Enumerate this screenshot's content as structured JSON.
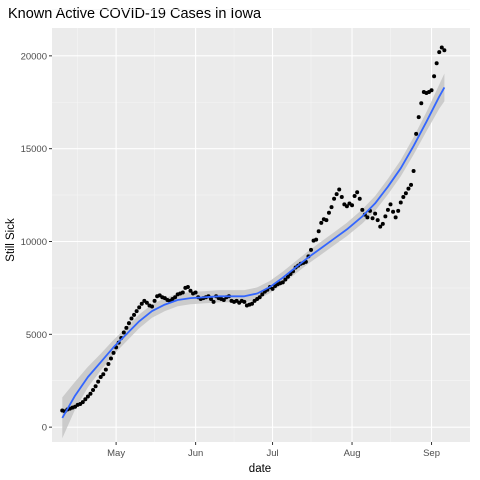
{
  "chart_data": {
    "type": "scatter",
    "title": "Known Active COVID-19 Cases in Iowa",
    "xlabel": "date",
    "ylabel": "Still Sick",
    "x_ticks": [
      "May",
      "Jun",
      "Jul",
      "Aug",
      "Sep"
    ],
    "y_ticks": [
      "0",
      "5000",
      "10000",
      "15000",
      "20000"
    ],
    "y_tick_values": [
      0,
      5000,
      10000,
      15000,
      20000
    ],
    "xlim": [
      "2020-04-06",
      "2020-09-16"
    ],
    "ylim": [
      -800,
      21500
    ],
    "grid": true,
    "legend": "none",
    "colors": {
      "panel": "#ebebeb",
      "grid_major": "#ffffff",
      "grid_minor": "#f5f5f5",
      "points": "#000000",
      "smooth_line": "#3366ff",
      "confidence_band": "#c6c6c6"
    },
    "series": [
      {
        "kind": "points",
        "points": [
          [
            "2020-04-10",
            900
          ],
          [
            "2020-04-11",
            850
          ],
          [
            "2020-04-12",
            950
          ],
          [
            "2020-04-13",
            1000
          ],
          [
            "2020-04-14",
            1050
          ],
          [
            "2020-04-15",
            1100
          ],
          [
            "2020-04-16",
            1200
          ],
          [
            "2020-04-17",
            1250
          ],
          [
            "2020-04-18",
            1350
          ],
          [
            "2020-04-19",
            1500
          ],
          [
            "2020-04-20",
            1650
          ],
          [
            "2020-04-21",
            1800
          ],
          [
            "2020-04-22",
            2000
          ],
          [
            "2020-04-23",
            2200
          ],
          [
            "2020-04-24",
            2450
          ],
          [
            "2020-04-25",
            2700
          ],
          [
            "2020-04-26",
            2850
          ],
          [
            "2020-04-27",
            3100
          ],
          [
            "2020-04-28",
            3400
          ],
          [
            "2020-04-29",
            3700
          ],
          [
            "2020-04-30",
            4000
          ],
          [
            "2020-05-01",
            4300
          ],
          [
            "2020-05-02",
            4550
          ],
          [
            "2020-05-03",
            4800
          ],
          [
            "2020-05-04",
            5100
          ],
          [
            "2020-05-05",
            5350
          ],
          [
            "2020-05-06",
            5600
          ],
          [
            "2020-05-07",
            5850
          ],
          [
            "2020-05-08",
            6050
          ],
          [
            "2020-05-09",
            6250
          ],
          [
            "2020-05-10",
            6450
          ],
          [
            "2020-05-11",
            6650
          ],
          [
            "2020-05-12",
            6800
          ],
          [
            "2020-05-13",
            6700
          ],
          [
            "2020-05-14",
            6550
          ],
          [
            "2020-05-15",
            6500
          ],
          [
            "2020-05-16",
            6800
          ],
          [
            "2020-05-17",
            7050
          ],
          [
            "2020-05-18",
            7100
          ],
          [
            "2020-05-19",
            7000
          ],
          [
            "2020-05-20",
            6950
          ],
          [
            "2020-05-21",
            6850
          ],
          [
            "2020-05-22",
            6800
          ],
          [
            "2020-05-23",
            6900
          ],
          [
            "2020-05-24",
            7000
          ],
          [
            "2020-05-25",
            7150
          ],
          [
            "2020-05-26",
            7200
          ],
          [
            "2020-05-27",
            7250
          ],
          [
            "2020-05-28",
            7500
          ],
          [
            "2020-05-29",
            7550
          ],
          [
            "2020-05-30",
            7350
          ],
          [
            "2020-05-31",
            7200
          ],
          [
            "2020-06-01",
            7250
          ],
          [
            "2020-06-02",
            7000
          ],
          [
            "2020-06-03",
            6900
          ],
          [
            "2020-06-04",
            6950
          ],
          [
            "2020-06-05",
            7000
          ],
          [
            "2020-06-06",
            7050
          ],
          [
            "2020-06-07",
            6900
          ],
          [
            "2020-06-08",
            6750
          ],
          [
            "2020-06-09",
            7050
          ],
          [
            "2020-06-10",
            6950
          ],
          [
            "2020-06-11",
            6900
          ],
          [
            "2020-06-12",
            6850
          ],
          [
            "2020-06-13",
            7000
          ],
          [
            "2020-06-14",
            7050
          ],
          [
            "2020-06-15",
            6800
          ],
          [
            "2020-06-16",
            6750
          ],
          [
            "2020-06-17",
            6800
          ],
          [
            "2020-06-18",
            6700
          ],
          [
            "2020-06-19",
            6800
          ],
          [
            "2020-06-20",
            6750
          ],
          [
            "2020-06-21",
            6550
          ],
          [
            "2020-06-22",
            6600
          ],
          [
            "2020-06-23",
            6650
          ],
          [
            "2020-06-24",
            6800
          ],
          [
            "2020-06-25",
            6900
          ],
          [
            "2020-06-26",
            7000
          ],
          [
            "2020-06-27",
            7150
          ],
          [
            "2020-06-28",
            7300
          ],
          [
            "2020-06-29",
            7400
          ],
          [
            "2020-06-30",
            7550
          ],
          [
            "2020-07-01",
            7450
          ],
          [
            "2020-07-02",
            7600
          ],
          [
            "2020-07-03",
            7700
          ],
          [
            "2020-07-04",
            7750
          ],
          [
            "2020-07-05",
            7800
          ],
          [
            "2020-07-06",
            7950
          ],
          [
            "2020-07-07",
            8100
          ],
          [
            "2020-07-08",
            8250
          ],
          [
            "2020-07-09",
            8400
          ],
          [
            "2020-07-10",
            8600
          ],
          [
            "2020-07-11",
            8700
          ],
          [
            "2020-07-12",
            8800
          ],
          [
            "2020-07-13",
            8850
          ],
          [
            "2020-07-14",
            8900
          ],
          [
            "2020-07-15",
            9200
          ],
          [
            "2020-07-16",
            9550
          ],
          [
            "2020-07-17",
            10050
          ],
          [
            "2020-07-18",
            10100
          ],
          [
            "2020-07-19",
            10550
          ],
          [
            "2020-07-20",
            11000
          ],
          [
            "2020-07-21",
            11200
          ],
          [
            "2020-07-22",
            11150
          ],
          [
            "2020-07-23",
            11550
          ],
          [
            "2020-07-24",
            11850
          ],
          [
            "2020-07-25",
            12300
          ],
          [
            "2020-07-26",
            12550
          ],
          [
            "2020-07-27",
            12800
          ],
          [
            "2020-07-28",
            12400
          ],
          [
            "2020-07-29",
            12000
          ],
          [
            "2020-07-30",
            11900
          ],
          [
            "2020-07-31",
            12050
          ],
          [
            "2020-08-01",
            11950
          ],
          [
            "2020-08-02",
            12450
          ],
          [
            "2020-08-03",
            12650
          ],
          [
            "2020-08-04",
            12300
          ],
          [
            "2020-08-05",
            11700
          ],
          [
            "2020-08-06",
            11450
          ],
          [
            "2020-08-07",
            11300
          ],
          [
            "2020-08-08",
            11650
          ],
          [
            "2020-08-09",
            11250
          ],
          [
            "2020-08-10",
            11500
          ],
          [
            "2020-08-11",
            11150
          ],
          [
            "2020-08-12",
            10800
          ],
          [
            "2020-08-13",
            10950
          ],
          [
            "2020-08-14",
            11350
          ],
          [
            "2020-08-15",
            11700
          ],
          [
            "2020-08-16",
            12000
          ],
          [
            "2020-08-17",
            11600
          ],
          [
            "2020-08-18",
            11300
          ],
          [
            "2020-08-19",
            11650
          ],
          [
            "2020-08-20",
            12100
          ],
          [
            "2020-08-21",
            12400
          ],
          [
            "2020-08-22",
            12600
          ],
          [
            "2020-08-23",
            12850
          ],
          [
            "2020-08-24",
            13050
          ],
          [
            "2020-08-25",
            13800
          ],
          [
            "2020-08-26",
            15800
          ],
          [
            "2020-08-27",
            16700
          ],
          [
            "2020-08-28",
            17450
          ],
          [
            "2020-08-29",
            18050
          ],
          [
            "2020-08-30",
            18000
          ],
          [
            "2020-08-31",
            18050
          ],
          [
            "2020-09-01",
            18150
          ],
          [
            "2020-09-02",
            18900
          ],
          [
            "2020-09-03",
            19600
          ],
          [
            "2020-09-04",
            20200
          ],
          [
            "2020-09-05",
            20450
          ],
          [
            "2020-09-06",
            20300
          ]
        ]
      },
      {
        "kind": "smooth",
        "points": [
          [
            "2020-04-10",
            500
          ],
          [
            "2020-04-15",
            1700
          ],
          [
            "2020-04-20",
            2700
          ],
          [
            "2020-04-25",
            3500
          ],
          [
            "2020-04-30",
            4300
          ],
          [
            "2020-05-05",
            5000
          ],
          [
            "2020-05-10",
            5700
          ],
          [
            "2020-05-15",
            6250
          ],
          [
            "2020-05-20",
            6600
          ],
          [
            "2020-05-25",
            6850
          ],
          [
            "2020-05-30",
            6950
          ],
          [
            "2020-06-05",
            7000
          ],
          [
            "2020-06-10",
            7050
          ],
          [
            "2020-06-15",
            7050
          ],
          [
            "2020-06-20",
            7050
          ],
          [
            "2020-06-25",
            7200
          ],
          [
            "2020-06-30",
            7550
          ],
          [
            "2020-07-05",
            8050
          ],
          [
            "2020-07-10",
            8600
          ],
          [
            "2020-07-15",
            9150
          ],
          [
            "2020-07-20",
            9650
          ],
          [
            "2020-07-25",
            10150
          ],
          [
            "2020-07-30",
            10650
          ],
          [
            "2020-08-05",
            11350
          ],
          [
            "2020-08-10",
            12050
          ],
          [
            "2020-08-15",
            12950
          ],
          [
            "2020-08-20",
            13950
          ],
          [
            "2020-08-25",
            15150
          ],
          [
            "2020-08-30",
            16450
          ],
          [
            "2020-09-04",
            17800
          ],
          [
            "2020-09-06",
            18300
          ]
        ],
        "band_halfwidth": [
          1100,
          750,
          550,
          450,
          400,
          380,
          370,
          360,
          350,
          340,
          330,
          330,
          330,
          330,
          330,
          330,
          330,
          330,
          340,
          340,
          350,
          350,
          360,
          380,
          400,
          420,
          440,
          470,
          520,
          650,
          750
        ]
      }
    ]
  }
}
